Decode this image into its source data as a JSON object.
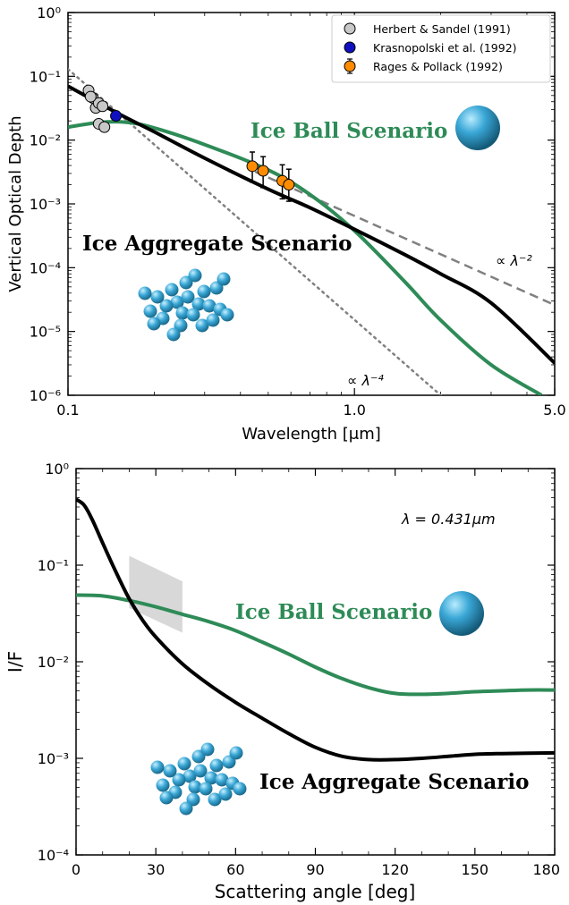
{
  "chart_data": [
    {
      "type": "line",
      "xlabel": "Wavelength [μm]",
      "ylabel": "Vertical Optical Depth",
      "xscale": "log",
      "yscale": "log",
      "xlim": [
        0.1,
        5.0
      ],
      "ylim": [
        1e-06,
        1.0
      ],
      "xticks": [
        {
          "value": 0.1,
          "label": "0.1"
        },
        {
          "value": 1.0,
          "label": "1.0"
        },
        {
          "value": 5.0,
          "label": "5.0"
        }
      ],
      "yticks": [
        {
          "value": 1e-06,
          "label": "10⁻⁶"
        },
        {
          "value": 1e-05,
          "label": "10⁻⁵"
        },
        {
          "value": 0.0001,
          "label": "10⁻⁴"
        },
        {
          "value": 0.001,
          "label": "10⁻³"
        },
        {
          "value": 0.01,
          "label": "10⁻²"
        },
        {
          "value": 0.1,
          "label": "10⁻¹"
        },
        {
          "value": 1.0,
          "label": "10⁰"
        }
      ],
      "legend_position": "top-right",
      "legend": [
        {
          "label": "Herbert & Sandel (1991)",
          "color": "#c8c8c8"
        },
        {
          "label": "Krasnopolski et al. (1992)",
          "color": "#1010c0"
        },
        {
          "label": "Rages & Pollack (1992)",
          "color": "#ff8c00"
        }
      ],
      "series": [
        {
          "key": "aggregate",
          "color": "#000000",
          "x": [
            0.1,
            0.15,
            0.2,
            0.3,
            0.5,
            0.7,
            1.0,
            1.5,
            2.0,
            3.0,
            5.0
          ],
          "y": [
            0.07,
            0.026,
            0.0135,
            0.0052,
            0.0017,
            0.00087,
            0.0004,
            0.00016,
            8e-05,
            2.8e-05,
            3.2e-06
          ]
        },
        {
          "key": "ball",
          "color": "#2e8b57",
          "x": [
            0.1,
            0.13,
            0.16,
            0.2,
            0.3,
            0.5,
            0.7,
            1.0,
            1.5,
            2.0,
            3.0,
            4.5
          ],
          "y": [
            0.016,
            0.019,
            0.019,
            0.0155,
            0.0085,
            0.0034,
            0.0014,
            0.00038,
            6e-05,
            1.5e-05,
            3e-06,
            1e-06
          ]
        },
        {
          "key": "ref-lambda-2",
          "color": "#808080",
          "dash": "dashed",
          "x": [
            0.45,
            5.0
          ],
          "y": [
            0.0032,
            2.6e-05
          ]
        },
        {
          "key": "ref-lambda-4",
          "color": "#808080",
          "dash": "dotted",
          "x": [
            0.1,
            2.0
          ],
          "y": [
            0.13,
            1e-06
          ]
        }
      ],
      "points": {
        "herbert_sandel": [
          {
            "x": 0.118,
            "y": 0.06
          },
          {
            "x": 0.122,
            "y": 0.046
          },
          {
            "x": 0.125,
            "y": 0.032
          },
          {
            "x": 0.128,
            "y": 0.038
          },
          {
            "x": 0.132,
            "y": 0.034
          },
          {
            "x": 0.128,
            "y": 0.018
          },
          {
            "x": 0.134,
            "y": 0.016
          },
          {
            "x": 0.12,
            "y": 0.048
          }
        ],
        "krasnopolski": [
          {
            "x": 0.147,
            "y": 0.024
          }
        ],
        "rages_pollack": [
          {
            "x": 0.44,
            "y": 0.0039,
            "lo": 0.0022,
            "hi": 0.0065
          },
          {
            "x": 0.48,
            "y": 0.0033,
            "lo": 0.0018,
            "hi": 0.0055
          },
          {
            "x": 0.56,
            "y": 0.0023,
            "lo": 0.0012,
            "hi": 0.0041
          },
          {
            "x": 0.59,
            "y": 0.002,
            "lo": 0.0011,
            "hi": 0.0035
          }
        ]
      },
      "annotations": {
        "lambda2": "∝ λ⁻²",
        "lambda4": "∝ λ⁻⁴",
        "ball_label": "Ice Ball Scenario",
        "aggregate_label": "Ice Aggregate Scenario"
      }
    },
    {
      "type": "line",
      "xlabel": "Scattering angle [deg]",
      "ylabel": "I/F",
      "yscale": "log",
      "xlim": [
        0,
        180
      ],
      "ylim": [
        0.0001,
        1.0
      ],
      "xticks": [
        {
          "value": 0,
          "label": "0"
        },
        {
          "value": 30,
          "label": "30"
        },
        {
          "value": 60,
          "label": "60"
        },
        {
          "value": 90,
          "label": "90"
        },
        {
          "value": 120,
          "label": "120"
        },
        {
          "value": 150,
          "label": "150"
        },
        {
          "value": 180,
          "label": "180"
        }
      ],
      "yticks": [
        {
          "value": 0.0001,
          "label": "10⁻⁴"
        },
        {
          "value": 0.001,
          "label": "10⁻³"
        },
        {
          "value": 0.01,
          "label": "10⁻²"
        },
        {
          "value": 0.1,
          "label": "10⁻¹"
        },
        {
          "value": 1.0,
          "label": "10⁰"
        }
      ],
      "series": [
        {
          "key": "aggregate",
          "color": "#000000",
          "x": [
            0,
            3,
            6,
            10,
            15,
            20,
            25,
            30,
            40,
            50,
            60,
            70,
            80,
            90,
            100,
            110,
            120,
            130,
            140,
            150,
            160,
            170,
            180
          ],
          "y": [
            0.48,
            0.42,
            0.3,
            0.17,
            0.085,
            0.045,
            0.027,
            0.018,
            0.0095,
            0.0058,
            0.0038,
            0.0026,
            0.0018,
            0.0013,
            0.00105,
            0.00097,
            0.00097,
            0.001,
            0.00105,
            0.0011,
            0.00112,
            0.00113,
            0.00114
          ]
        },
        {
          "key": "ball",
          "color": "#2e8b57",
          "x": [
            0,
            10,
            20,
            30,
            40,
            50,
            60,
            70,
            80,
            90,
            100,
            110,
            120,
            130,
            140,
            150,
            160,
            170,
            180
          ],
          "y": [
            0.049,
            0.048,
            0.043,
            0.037,
            0.031,
            0.026,
            0.021,
            0.016,
            0.012,
            0.0088,
            0.0067,
            0.0054,
            0.0047,
            0.0046,
            0.0047,
            0.0049,
            0.005,
            0.0051,
            0.0051
          ]
        }
      ],
      "observation_band": {
        "x": [
          20,
          40
        ],
        "upper": [
          0.125,
          0.068
        ],
        "lower": [
          0.036,
          0.02
        ]
      },
      "annotations": {
        "wavelength": "λ = 0.431μm",
        "ball_label": "Ice Ball Scenario",
        "aggregate_label": "Ice Aggregate Scenario"
      }
    }
  ],
  "colors": {
    "ball": "#2e8b57",
    "aggregate": "#000000",
    "reference": "#808080",
    "observation": "#d8d8d8",
    "particle": "#3aa7d6"
  }
}
